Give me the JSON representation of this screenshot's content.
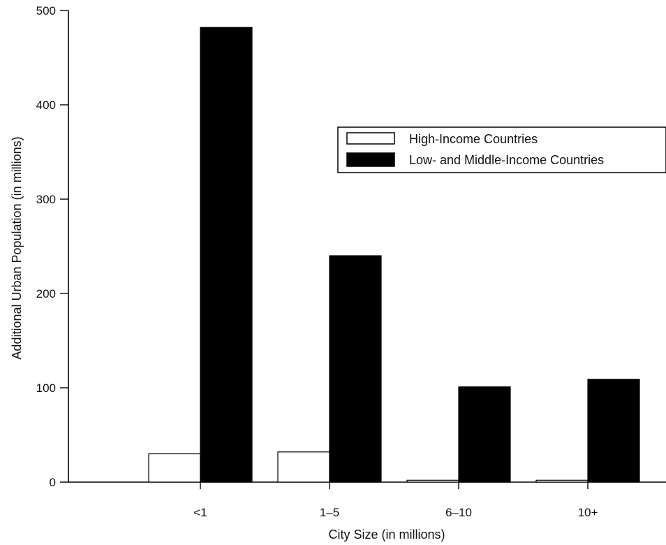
{
  "chart_data": {
    "type": "bar",
    "title": "",
    "xlabel": "City Size (in millions)",
    "ylabel": "Additional Urban Population (in millions)",
    "ylim": [
      0,
      500
    ],
    "yticks": [
      0,
      100,
      200,
      300,
      400,
      500
    ],
    "categories": [
      "<1",
      "1–5",
      "6–10",
      "10+"
    ],
    "series": [
      {
        "name": "High-Income Countries",
        "values": [
          30,
          32,
          2,
          2
        ],
        "color": "#ffffff"
      },
      {
        "name": "Low- and Middle-Income Countries",
        "values": [
          482,
          240,
          101,
          109
        ],
        "color": "#000000"
      }
    ],
    "grid": false,
    "legend_position": "top-right"
  }
}
